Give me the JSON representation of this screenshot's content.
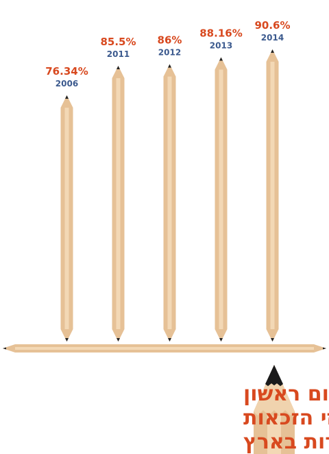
{
  "chart_data": {
    "type": "pencil-bar",
    "title": [
      "שוהם: מקום ראשון",
      "באחוזי הזכאות",
      "לבגרות בארץ"
    ],
    "categories": [
      "2006",
      "2011",
      "2012",
      "2013",
      "2014"
    ],
    "values": [
      76.34,
      85.5,
      86,
      88.16,
      90.6
    ],
    "value_labels": [
      "76.34%",
      "85.5%",
      "86%",
      "88.16%",
      "90.6%"
    ],
    "color": "#e6c196",
    "value_label_color": "#d8491f",
    "category_color": "#3c5a8e"
  }
}
